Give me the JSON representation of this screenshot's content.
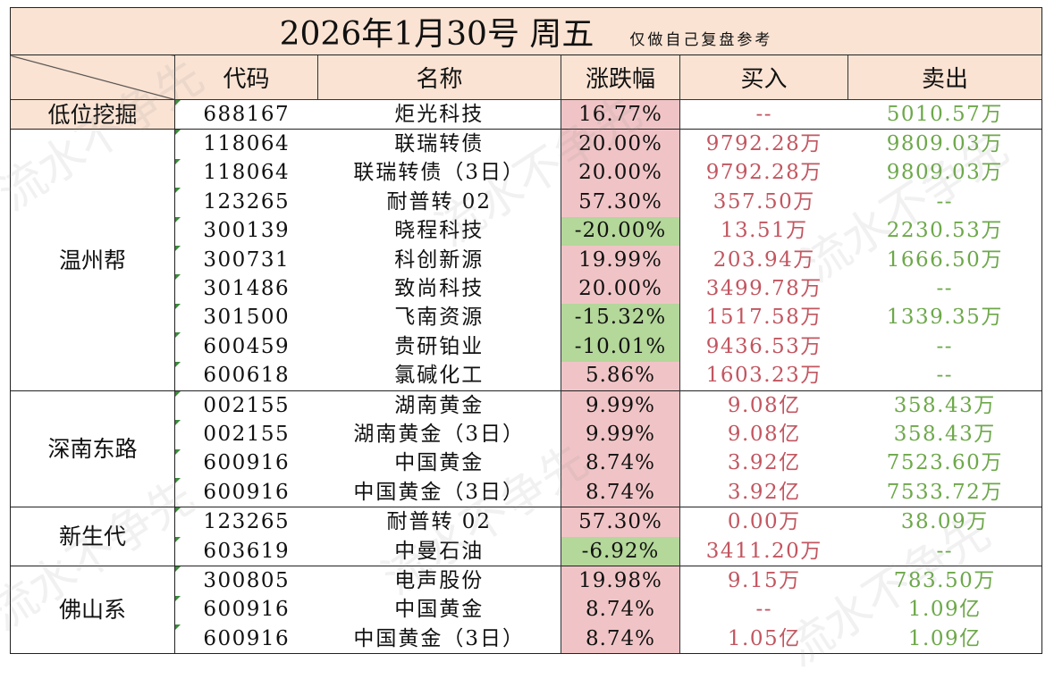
{
  "title": "2026年1月30号  周五",
  "note": "仅做自己复盘参考",
  "watermark": "流水不争先",
  "headers": {
    "code": "代码",
    "name": "名称",
    "change": "涨跌幅",
    "buy": "买入",
    "sell": "卖出"
  },
  "colors": {
    "header_bg": "#fae3d3",
    "rise_bg": "#f0c4c6",
    "fall_bg": "#b4d79a",
    "buy_text": "#c25660",
    "sell_text": "#6da84a"
  },
  "groups": [
    {
      "name": "低位挖掘",
      "rows": [
        {
          "code": "688167",
          "name": "炬光科技",
          "change": "16.77%",
          "buy": "--",
          "sell": "5010.57万"
        }
      ]
    },
    {
      "name": "温州帮",
      "rows": [
        {
          "code": "118064",
          "name": "联瑞转债",
          "change": "20.00%",
          "buy": "9792.28万",
          "sell": "9809.03万"
        },
        {
          "code": "118064",
          "name": "联瑞转债（3日）",
          "change": "20.00%",
          "buy": "9792.28万",
          "sell": "9809.03万"
        },
        {
          "code": "123265",
          "name": "耐普转 02",
          "change": "57.30%",
          "buy": "357.50万",
          "sell": "--"
        },
        {
          "code": "300139",
          "name": "晓程科技",
          "change": "-20.00%",
          "buy": "13.51万",
          "sell": "2230.53万"
        },
        {
          "code": "300731",
          "name": "科创新源",
          "change": "19.99%",
          "buy": "203.94万",
          "sell": "1666.50万"
        },
        {
          "code": "301486",
          "name": "致尚科技",
          "change": "20.00%",
          "buy": "3499.78万",
          "sell": "--"
        },
        {
          "code": "301500",
          "name": "飞南资源",
          "change": "-15.32%",
          "buy": "1517.58万",
          "sell": "1339.35万"
        },
        {
          "code": "600459",
          "name": "贵研铂业",
          "change": "-10.01%",
          "buy": "9436.53万",
          "sell": "--"
        },
        {
          "code": "600618",
          "name": "氯碱化工",
          "change": "5.86%",
          "buy": "1603.23万",
          "sell": "--"
        }
      ]
    },
    {
      "name": "深南东路",
      "rows": [
        {
          "code": "002155",
          "name": "湖南黄金",
          "change": "9.99%",
          "buy": "9.08亿",
          "sell": "358.43万"
        },
        {
          "code": "002155",
          "name": "湖南黄金（3日）",
          "change": "9.99%",
          "buy": "9.08亿",
          "sell": "358.43万"
        },
        {
          "code": "600916",
          "name": "中国黄金",
          "change": "8.74%",
          "buy": "3.92亿",
          "sell": "7523.60万"
        },
        {
          "code": "600916",
          "name": "中国黄金（3日）",
          "change": "8.74%",
          "buy": "3.92亿",
          "sell": "7533.72万"
        }
      ]
    },
    {
      "name": "新生代",
      "rows": [
        {
          "code": "123265",
          "name": "耐普转 02",
          "change": "57.30%",
          "buy": "0.00万",
          "sell": "38.09万"
        },
        {
          "code": "603619",
          "name": "中曼石油",
          "change": "-6.92%",
          "buy": "3411.20万",
          "sell": "--"
        }
      ]
    },
    {
      "name": "佛山系",
      "rows": [
        {
          "code": "300805",
          "name": "电声股份",
          "change": "19.98%",
          "buy": "9.15万",
          "sell": "783.50万"
        },
        {
          "code": "600916",
          "name": "中国黄金",
          "change": "8.74%",
          "buy": "--",
          "sell": "1.09亿"
        },
        {
          "code": "600916",
          "name": "中国黄金（3日）",
          "change": "8.74%",
          "buy": "1.05亿",
          "sell": "1.09亿"
        }
      ]
    }
  ]
}
